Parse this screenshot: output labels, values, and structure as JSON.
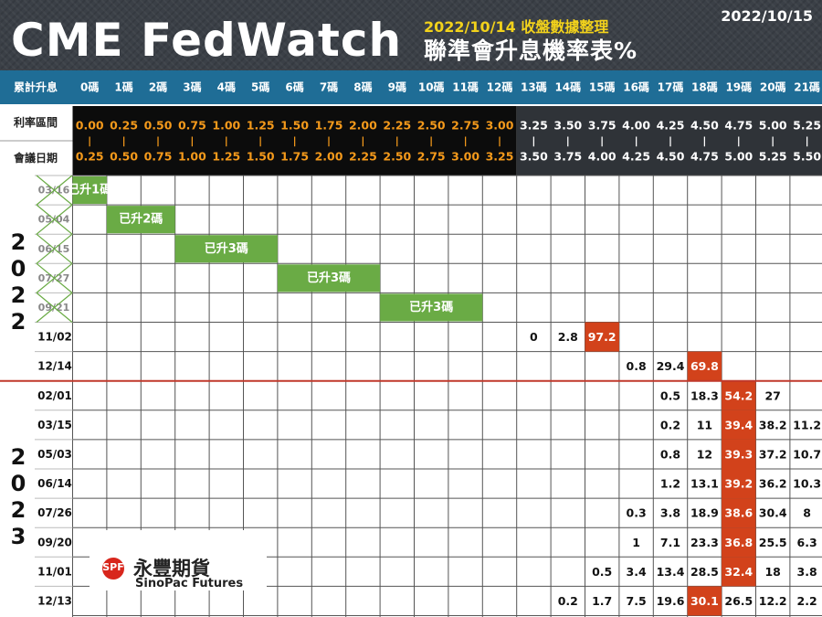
{
  "header": {
    "title": "CME FedWatch",
    "summary_date": "2022/10/14 收盤數據整理",
    "subtitle": "聯準會升息機率表%",
    "date": "2022/10/15"
  },
  "colors": {
    "header_bg": "#3b4047",
    "band_blue": "#1f6d96",
    "range_dark": "#0c0c0c",
    "range_gray": "#2f3338",
    "range_orange": "#f59a1b",
    "green_hike": "#6aab45",
    "peak_red": "#d2421b",
    "divider_red": "#c0392b"
  },
  "logo": {
    "cn": "永豐期貨",
    "en": "SinoPac Futures",
    "mark": "SPF"
  },
  "chart_data": {
    "type": "table",
    "row_headers": {
      "hikes": "累計升息",
      "range": "利率區間",
      "meeting": "會議日期"
    },
    "hike_labels": [
      "0碼",
      "1碼",
      "2碼",
      "3碼",
      "4碼",
      "5碼",
      "6碼",
      "7碼",
      "8碼",
      "9碼",
      "10碼",
      "11碼",
      "12碼",
      "13碼",
      "14碼",
      "15碼",
      "16碼",
      "17碼",
      "18碼",
      "19碼",
      "20碼",
      "21碼"
    ],
    "range_low": [
      "0.00",
      "0.25",
      "0.50",
      "0.75",
      "1.00",
      "1.25",
      "1.50",
      "1.75",
      "2.00",
      "2.25",
      "2.50",
      "2.75",
      "3.00",
      "3.25",
      "3.50",
      "3.75",
      "4.00",
      "4.25",
      "4.50",
      "4.75",
      "5.00",
      "5.25"
    ],
    "range_high": [
      "0.25",
      "0.50",
      "0.75",
      "1.00",
      "1.25",
      "1.50",
      "1.75",
      "2.00",
      "2.25",
      "2.50",
      "2.75",
      "3.00",
      "3.25",
      "3.50",
      "3.75",
      "4.00",
      "4.25",
      "4.50",
      "4.75",
      "5.00",
      "5.25",
      "5.50"
    ],
    "range_separator": "|",
    "years": [
      {
        "year": [
          "2",
          "0",
          "2",
          "2"
        ]
      },
      {
        "year": [
          "2",
          "0",
          "2",
          "3"
        ]
      }
    ],
    "past_meetings": [
      {
        "date": "03/16",
        "hike_label": "已升1碼",
        "from_col": 0,
        "to_col": 1
      },
      {
        "date": "05/04",
        "hike_label": "已升2碼",
        "from_col": 1,
        "to_col": 3
      },
      {
        "date": "06/15",
        "hike_label": "已升3碼",
        "from_col": 3,
        "to_col": 6
      },
      {
        "date": "07/27",
        "hike_label": "已升3碼",
        "from_col": 6,
        "to_col": 9
      },
      {
        "date": "09/21",
        "hike_label": "已升3碼",
        "from_col": 9,
        "to_col": 12
      }
    ],
    "future_meetings": [
      {
        "date": "11/02",
        "start_col": 13,
        "values": [
          "0",
          "2.8",
          "97.2"
        ],
        "peak_col": 15
      },
      {
        "date": "12/14",
        "start_col": 16,
        "values": [
          "0.8",
          "29.4",
          "69.8"
        ],
        "peak_col": 18
      },
      {
        "date": "02/01",
        "start_col": 17,
        "values": [
          "0.5",
          "18.3",
          "54.2",
          "27"
        ],
        "peak_col": 19
      },
      {
        "date": "03/15",
        "start_col": 17,
        "values": [
          "0.2",
          "11",
          "39.4",
          "38.2",
          "11.2"
        ],
        "peak_col": 19
      },
      {
        "date": "05/03",
        "start_col": 17,
        "values": [
          "0.8",
          "12",
          "39.3",
          "37.2",
          "10.7"
        ],
        "peak_col": 19
      },
      {
        "date": "06/14",
        "start_col": 17,
        "values": [
          "1.2",
          "13.1",
          "39.2",
          "36.2",
          "10.3"
        ],
        "peak_col": 19
      },
      {
        "date": "07/26",
        "start_col": 16,
        "values": [
          "0.3",
          "3.8",
          "18.9",
          "38.6",
          "30.4",
          "8"
        ],
        "peak_col": 19
      },
      {
        "date": "09/20",
        "start_col": 16,
        "values": [
          "1",
          "7.1",
          "23.3",
          "36.8",
          "25.5",
          "6.3"
        ],
        "peak_col": 19
      },
      {
        "date": "11/01",
        "start_col": 15,
        "values": [
          "0.5",
          "3.4",
          "13.4",
          "28.5",
          "32.4",
          "18",
          "3.8"
        ],
        "peak_col": 19
      },
      {
        "date": "12/13",
        "start_col": 14,
        "values": [
          "0.2",
          "1.7",
          "7.5",
          "19.6",
          "30.1",
          "26.5",
          "12.2",
          "2.2"
        ],
        "peak_col": 18
      }
    ]
  }
}
